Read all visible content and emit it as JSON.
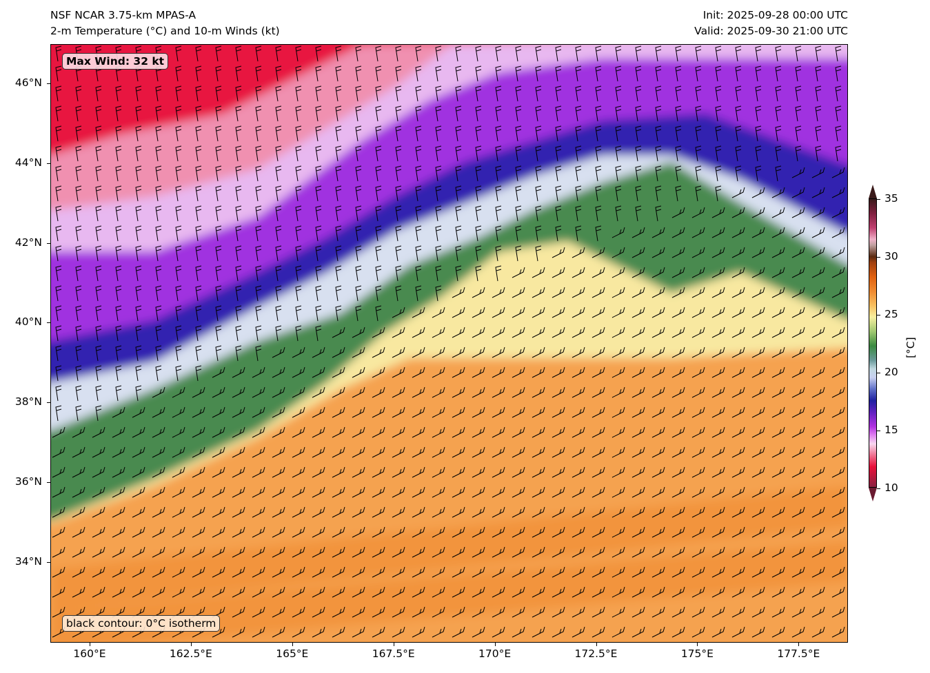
{
  "header": {
    "title_line1": "NSF NCAR 3.75-km MPAS-A",
    "title_line2": "2-m Temperature (°C) and 10-m Winds (kt)",
    "init": "Init: 2025-09-28 00:00 UTC",
    "valid": "Valid: 2025-09-30 21:00 UTC"
  },
  "map": {
    "max_wind_label": "Max Wind: 32 kt",
    "contour_note": "black contour: 0°C isotherm",
    "lat_labels": [
      "46°N",
      "44°N",
      "42°N",
      "40°N",
      "38°N",
      "36°N",
      "34°N"
    ],
    "lon_labels": [
      "160°E",
      "162.5°E",
      "165°E",
      "167.5°E",
      "170°E",
      "172.5°E",
      "175°E",
      "177.5°E"
    ]
  },
  "colorbar": {
    "label": "[°C]",
    "ticks": [
      "35",
      "30",
      "25",
      "20",
      "15",
      "10"
    ],
    "min": 10,
    "max": 35
  },
  "colors": {
    "orange": "#f5a250",
    "yellow": "#f8e8a0",
    "green": "#4a8a50",
    "lightblue": "#d8e0f0",
    "indigo": "#3020b0",
    "purple": "#a030e0",
    "lavender": "#e8b8f0",
    "pink": "#f090b0",
    "red": "#e81840"
  }
}
